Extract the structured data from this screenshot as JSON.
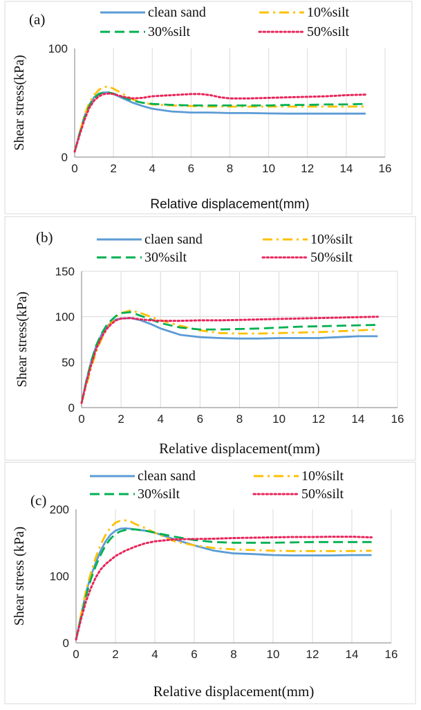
{
  "chart_data": [
    {
      "type": "line",
      "panel_label": "(a)",
      "xlabel": "Relative displacement(mm)",
      "ylabel": "Shear stress(kPa)",
      "xlim": [
        0,
        16
      ],
      "ylim": [
        0,
        100
      ],
      "x_ticks": [
        0,
        2,
        4,
        6,
        8,
        10,
        12,
        14,
        16
      ],
      "y_ticks": [
        0,
        100
      ],
      "grid": "vertical",
      "legend_position": "top",
      "series": [
        {
          "name": "clean sand",
          "color": "#5b9bd5",
          "style": "solid",
          "x": [
            0,
            0.25,
            0.5,
            0.75,
            1.0,
            1.25,
            1.5,
            1.75,
            2.0,
            2.5,
            3,
            3.5,
            4,
            5,
            6,
            7,
            8,
            9,
            10,
            11,
            12,
            13,
            14,
            15
          ],
          "y": [
            5,
            22,
            37,
            48,
            55,
            58.5,
            59.5,
            59.5,
            58,
            54,
            50,
            47,
            44.5,
            42,
            41,
            41,
            40.5,
            40.5,
            40.2,
            40,
            40,
            40,
            40,
            40
          ]
        },
        {
          "name": "10%silt",
          "color": "#ffc000",
          "style": "dashdot",
          "x": [
            0,
            0.25,
            0.5,
            0.75,
            1.0,
            1.25,
            1.5,
            1.75,
            2.0,
            2.5,
            3,
            3.5,
            4,
            5,
            6,
            7,
            8,
            9,
            10,
            11,
            12,
            13,
            14,
            15
          ],
          "y": [
            5,
            22,
            38,
            50,
            57,
            62,
            64.5,
            65,
            63,
            58,
            53,
            50,
            48.5,
            47.5,
            47,
            46.5,
            46.5,
            46.5,
            46.5,
            46.5,
            46.5,
            46.5,
            46.5,
            46.5
          ]
        },
        {
          "name": "30%silt",
          "color": "#00b050",
          "style": "dashed",
          "x": [
            0,
            0.25,
            0.5,
            0.75,
            1.0,
            1.25,
            1.5,
            1.75,
            2.0,
            2.5,
            3,
            3.5,
            4,
            5,
            6,
            7,
            8,
            9,
            10,
            11,
            12,
            13,
            14,
            15
          ],
          "y": [
            5,
            21,
            36,
            47,
            54,
            58,
            59.5,
            59.5,
            58.5,
            55,
            52,
            50,
            49,
            48,
            47.5,
            47.5,
            47.5,
            47.5,
            47.5,
            48,
            48,
            48.5,
            48.5,
            49
          ]
        },
        {
          "name": "50%silt",
          "color": "#e8245a",
          "style": "dotted",
          "x": [
            0,
            0.25,
            0.5,
            0.75,
            1.0,
            1.25,
            1.5,
            1.75,
            2.0,
            2.5,
            3,
            3.5,
            4,
            5,
            6,
            6.5,
            7,
            7.5,
            8,
            9,
            10,
            11,
            12,
            13,
            14,
            15
          ],
          "y": [
            5,
            20,
            34,
            45,
            52,
            56,
            58,
            58.5,
            58,
            55.5,
            54,
            54.5,
            56,
            57,
            58,
            58,
            57,
            55,
            54,
            54,
            54.5,
            55,
            55.5,
            56,
            57,
            57.5
          ]
        }
      ]
    },
    {
      "type": "line",
      "panel_label": "(b)",
      "xlabel": "Relative displacement(mm)",
      "ylabel": "Shear stress(kPa)",
      "xlim": [
        0,
        16
      ],
      "ylim": [
        0,
        150
      ],
      "x_ticks": [
        0,
        2,
        4,
        6,
        8,
        10,
        12,
        14,
        16
      ],
      "y_ticks": [
        0,
        50,
        100,
        150
      ],
      "grid": "both",
      "legend_position": "top",
      "series": [
        {
          "name": "claen sand",
          "color": "#5b9bd5",
          "style": "solid",
          "x": [
            0,
            0.25,
            0.5,
            0.75,
            1.0,
            1.25,
            1.5,
            1.75,
            2.0,
            2.5,
            3,
            3.5,
            4,
            5,
            6,
            7,
            8,
            9,
            10,
            11,
            12,
            13,
            14,
            15
          ],
          "y": [
            5,
            30,
            52,
            68,
            80,
            88,
            94,
            97,
            98,
            98.5,
            96,
            92,
            87,
            80,
            77.5,
            76.5,
            76,
            76,
            76.5,
            76.5,
            76.5,
            77.5,
            78.5,
            78.5
          ]
        },
        {
          "name": "10%silt",
          "color": "#ffc000",
          "style": "dashdot",
          "x": [
            0,
            0.25,
            0.5,
            0.75,
            1.0,
            1.25,
            1.5,
            1.75,
            2.0,
            2.5,
            3,
            3.5,
            4,
            5,
            6,
            7,
            8,
            9,
            10,
            11,
            12,
            13,
            14,
            15
          ],
          "y": [
            5,
            25,
            45,
            62,
            75,
            85,
            94,
            100,
            104,
            107,
            104,
            100,
            96,
            90,
            85,
            82,
            81.5,
            81.5,
            82,
            82.5,
            83,
            84,
            85,
            86
          ]
        },
        {
          "name": "30%silt",
          "color": "#00b050",
          "style": "dashed",
          "x": [
            0,
            0.25,
            0.5,
            0.75,
            1.0,
            1.25,
            1.5,
            1.75,
            2.0,
            2.5,
            3,
            3.5,
            4,
            5,
            6,
            7,
            8,
            9,
            10,
            11,
            12,
            13,
            14,
            15
          ],
          "y": [
            5,
            30,
            52,
            69,
            81,
            90,
            96,
            101,
            104,
            105,
            101,
            97,
            93,
            88,
            86,
            86,
            86.5,
            87,
            88,
            89,
            89.5,
            90,
            90.5,
            91
          ]
        },
        {
          "name": "50%silt",
          "color": "#e8245a",
          "style": "dotted",
          "x": [
            0,
            0.25,
            0.5,
            0.75,
            1.0,
            1.25,
            1.5,
            1.75,
            2.0,
            2.5,
            3,
            3.5,
            4,
            5,
            6,
            7,
            8,
            9,
            10,
            11,
            12,
            13,
            14,
            15
          ],
          "y": [
            5,
            28,
            48,
            65,
            77,
            86,
            92,
            96,
            98,
            98.5,
            97,
            96,
            95.5,
            95.5,
            96,
            96,
            96.5,
            97,
            97.5,
            98,
            98.5,
            99,
            99.5,
            100
          ]
        }
      ]
    },
    {
      "type": "line",
      "panel_label": "(c)",
      "xlabel": "Relative displacement(mm)",
      "ylabel": "Shear stress (kPa)",
      "xlim": [
        0,
        16
      ],
      "ylim": [
        0,
        200
      ],
      "x_ticks": [
        0,
        2,
        4,
        6,
        8,
        10,
        12,
        14,
        16
      ],
      "y_ticks": [
        0,
        100,
        200
      ],
      "grid": "vertical",
      "legend_position": "top",
      "series": [
        {
          "name": "clean sand",
          "color": "#5b9bd5",
          "style": "solid",
          "x": [
            0,
            0.25,
            0.5,
            0.75,
            1.0,
            1.25,
            1.5,
            1.75,
            2.0,
            2.25,
            2.5,
            2.75,
            3,
            3.5,
            4,
            5,
            6,
            7,
            8,
            9,
            10,
            11,
            12,
            13,
            14,
            15
          ],
          "y": [
            5,
            40,
            75,
            100,
            120,
            138,
            152,
            162,
            168,
            171,
            171.5,
            171,
            170,
            168,
            165,
            155,
            146,
            138,
            134,
            133,
            131.5,
            131,
            131,
            131,
            131.5,
            131.5
          ]
        },
        {
          "name": "10%silt",
          "color": "#ffc000",
          "style": "dashdot",
          "x": [
            0,
            0.25,
            0.5,
            0.75,
            1.0,
            1.25,
            1.5,
            1.75,
            2.0,
            2.25,
            2.5,
            2.75,
            3,
            3.5,
            4,
            5,
            6,
            7,
            8,
            9,
            10,
            11,
            12,
            13,
            14,
            15
          ],
          "y": [
            5,
            42,
            78,
            105,
            128,
            147,
            162,
            173,
            180,
            183,
            183.5,
            182,
            178,
            172,
            165,
            152,
            146,
            142,
            140,
            139,
            138,
            137.5,
            137.5,
            137.5,
            137.5,
            138
          ]
        },
        {
          "name": "30%silt",
          "color": "#00b050",
          "style": "dashed",
          "x": [
            0,
            0.25,
            0.5,
            0.75,
            1.0,
            1.25,
            1.5,
            1.75,
            2.0,
            2.25,
            2.5,
            2.75,
            3,
            3.5,
            4,
            5,
            6,
            7,
            8,
            9,
            10,
            11,
            12,
            13,
            14,
            15
          ],
          "y": [
            5,
            38,
            70,
            95,
            115,
            132,
            146,
            156,
            163,
            167,
            169,
            170,
            170,
            168,
            165,
            159,
            154,
            151,
            150,
            150,
            150,
            150.5,
            151,
            151,
            151,
            151
          ]
        },
        {
          "name": "50%silt",
          "color": "#e8245a",
          "style": "dotted",
          "x": [
            0,
            0.25,
            0.5,
            0.75,
            1.0,
            1.25,
            1.5,
            1.75,
            2.0,
            2.5,
            3,
            3.5,
            4,
            5,
            6,
            7,
            8,
            9,
            10,
            11,
            12,
            13,
            14,
            15
          ],
          "y": [
            5,
            35,
            62,
            82,
            98,
            110,
            118,
            124,
            130,
            138,
            144,
            149,
            152,
            155,
            155.5,
            156,
            157,
            157.5,
            158,
            158.5,
            158.5,
            159,
            159,
            158
          ]
        }
      ]
    }
  ]
}
